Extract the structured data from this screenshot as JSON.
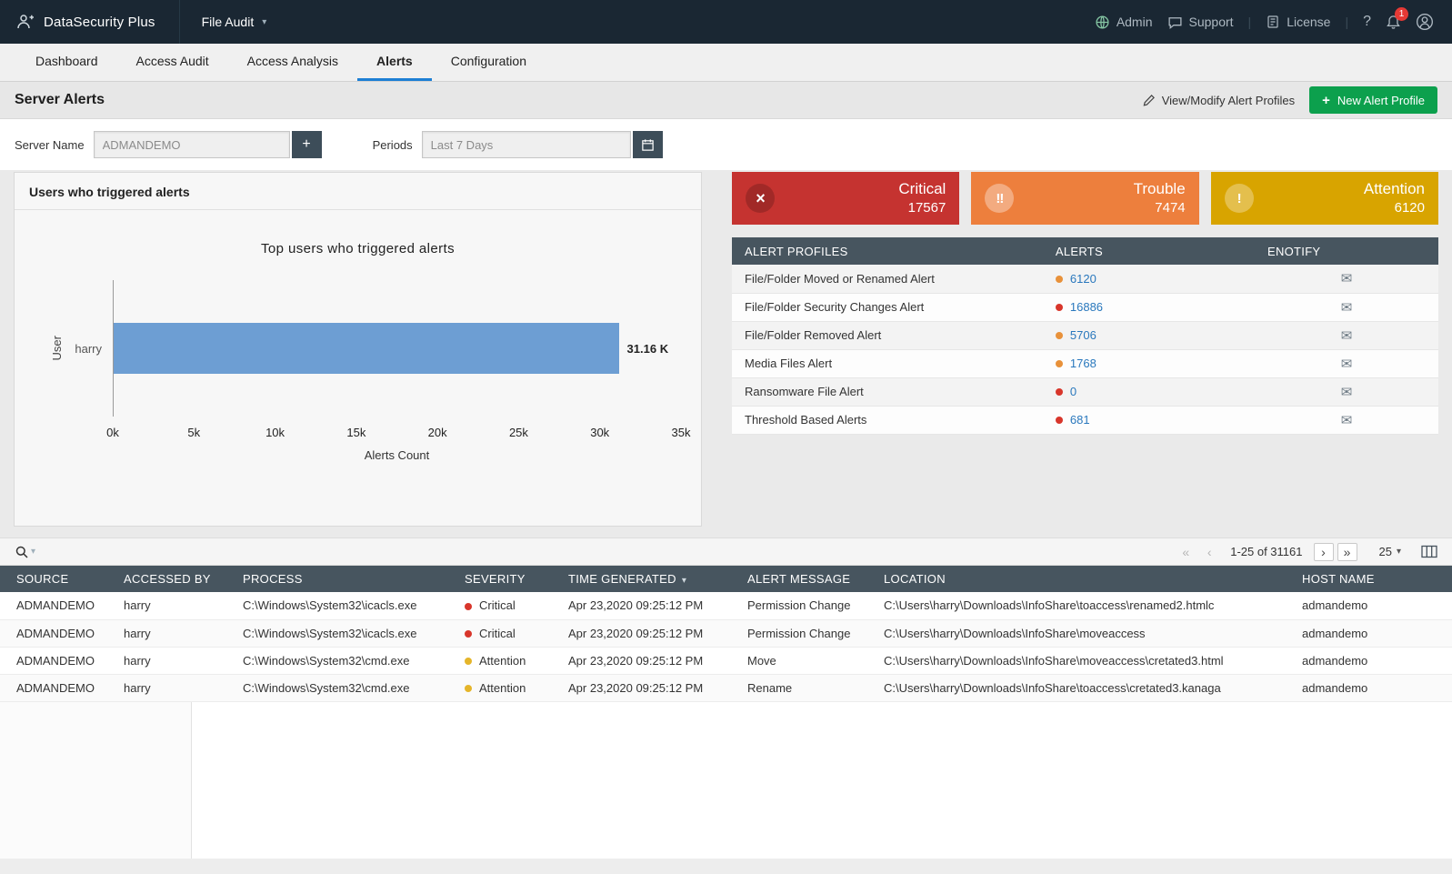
{
  "topbar": {
    "brand": "DataSecurity Plus",
    "module": "File Audit",
    "admin": "Admin",
    "support": "Support",
    "license": "License",
    "notification_count": "1"
  },
  "tabs": [
    {
      "label": "Dashboard"
    },
    {
      "label": "Access Audit"
    },
    {
      "label": "Access Analysis"
    },
    {
      "label": "Alerts"
    },
    {
      "label": "Configuration"
    }
  ],
  "page": {
    "title": "Server Alerts",
    "view_modify_label": "View/Modify Alert Profiles",
    "new_profile_label": "New Alert Profile"
  },
  "filters": {
    "server_name_label": "Server Name",
    "server_name_value": "ADMANDEMO",
    "periods_label": "Periods",
    "periods_value": "Last 7 Days"
  },
  "chart_card": {
    "title": "Users who triggered alerts"
  },
  "chart_data": {
    "type": "bar",
    "orientation": "horizontal",
    "title": "Top users who triggered alerts",
    "categories": [
      "harry"
    ],
    "values": [
      31160
    ],
    "value_labels": [
      "31.16 K"
    ],
    "x_ticks": [
      "0k",
      "5k",
      "10k",
      "15k",
      "20k",
      "25k",
      "30k",
      "35k"
    ],
    "xlim": [
      0,
      35000
    ],
    "xlabel": "Alerts Count",
    "ylabel": "User",
    "bar_color": "#6d9ed3",
    "grid": false,
    "legend": false
  },
  "severity_cards": [
    {
      "label": "Critical",
      "count": "17567",
      "color": "#c53330",
      "icon": "×"
    },
    {
      "label": "Trouble",
      "count": "7474",
      "color": "#ed7f3d",
      "icon": "!!"
    },
    {
      "label": "Attention",
      "count": "6120",
      "color": "#d8a400",
      "icon": "!"
    }
  ],
  "alert_profiles": {
    "headers": {
      "profile": "ALERT PROFILES",
      "alerts": "ALERTS",
      "notify": "ENOTIFY"
    },
    "rows": [
      {
        "profile": "File/Folder Moved or Renamed Alert",
        "alerts": "6120",
        "dot_color": "#e8913a"
      },
      {
        "profile": "File/Folder Security Changes Alert",
        "alerts": "16886",
        "dot_color": "#d8362b"
      },
      {
        "profile": "File/Folder Removed Alert",
        "alerts": "5706",
        "dot_color": "#e8913a"
      },
      {
        "profile": "Media Files Alert",
        "alerts": "1768",
        "dot_color": "#e8913a"
      },
      {
        "profile": "Ransomware File Alert",
        "alerts": "0",
        "dot_color": "#d8362b"
      },
      {
        "profile": "Threshold Based Alerts",
        "alerts": "681",
        "dot_color": "#d8362b"
      }
    ]
  },
  "toolbar": {
    "range": "1-25 of 31161",
    "page_size": "25",
    "first": "«",
    "prev": "‹",
    "next": "›",
    "last": "»"
  },
  "alerts_table": {
    "headers": {
      "source": "SOURCE",
      "accessed": "ACCESSED BY",
      "process": "PROCESS",
      "severity": "SEVERITY",
      "time": "TIME GENERATED",
      "message": "ALERT MESSAGE",
      "location": "LOCATION",
      "host": "HOST NAME"
    },
    "rows": [
      {
        "source": "ADMANDEMO",
        "accessed": "harry",
        "process": "C:\\Windows\\System32\\icacls.exe",
        "severity": "Critical",
        "severity_color": "#d8362b",
        "time": "Apr 23,2020 09:25:12 PM",
        "message": "Permission Change",
        "location": "C:\\Users\\harry\\Downloads\\InfoShare\\toaccess\\renamed2.htmlc",
        "host": "admandemo"
      },
      {
        "source": "ADMANDEMO",
        "accessed": "harry",
        "process": "C:\\Windows\\System32\\icacls.exe",
        "severity": "Critical",
        "severity_color": "#d8362b",
        "time": "Apr 23,2020 09:25:12 PM",
        "message": "Permission Change",
        "location": "C:\\Users\\harry\\Downloads\\InfoShare\\moveaccess",
        "host": "admandemo"
      },
      {
        "source": "ADMANDEMO",
        "accessed": "harry",
        "process": "C:\\Windows\\System32\\cmd.exe",
        "severity": "Attention",
        "severity_color": "#e5b52a",
        "time": "Apr 23,2020 09:25:12 PM",
        "message": "Move",
        "location": "C:\\Users\\harry\\Downloads\\InfoShare\\moveaccess\\cretated3.html",
        "host": "admandemo"
      },
      {
        "source": "ADMANDEMO",
        "accessed": "harry",
        "process": "C:\\Windows\\System32\\cmd.exe",
        "severity": "Attention",
        "severity_color": "#e5b52a",
        "time": "Apr 23,2020 09:25:12 PM",
        "message": "Rename",
        "location": "C:\\Users\\harry\\Downloads\\InfoShare\\toaccess\\cretated3.kanaga",
        "host": "admandemo"
      }
    ]
  },
  "icons": {
    "envelope": "✉",
    "caret_down": "▾",
    "plus": "+",
    "help": "?"
  },
  "colors": {
    "accent_green": "#0ca04d",
    "active_tab_blue": "#1d7fd4",
    "header_slate": "#47555f",
    "link_blue": "#2a78bd"
  }
}
